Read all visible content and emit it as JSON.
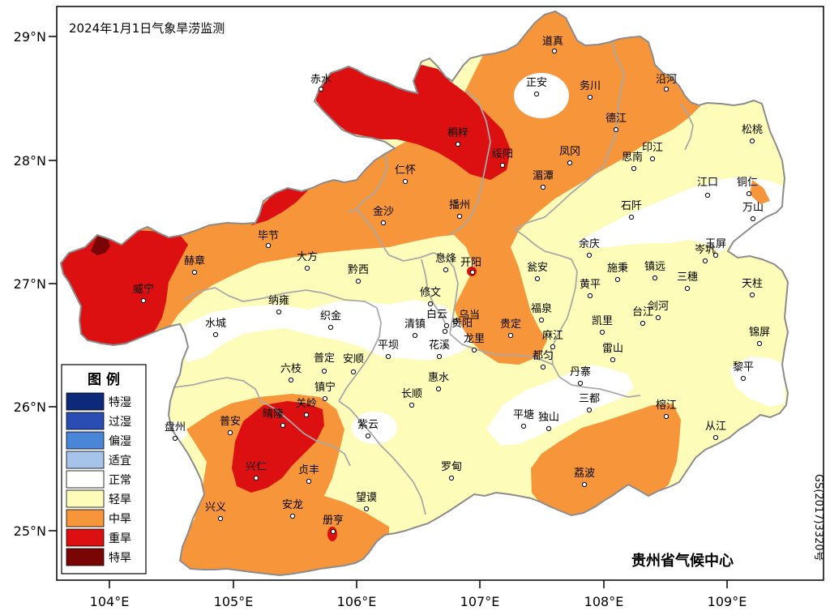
{
  "map": {
    "title": "2024年1月1日气象旱涝监测",
    "credit": "贵州省气候中心",
    "approval_number": "GS(2017)3320号",
    "lat_ticks": [
      "29°N",
      "28°N",
      "27°N",
      "26°N",
      "25°N"
    ],
    "lon_ticks": [
      "104°E",
      "105°E",
      "106°E",
      "107°E",
      "108°E",
      "109°E"
    ]
  },
  "legend": {
    "title": "图  例",
    "items": [
      {
        "label": "特湿",
        "color": "#0d2a7a"
      },
      {
        "label": "过湿",
        "color": "#2a4db3"
      },
      {
        "label": "偏湿",
        "color": "#4a86d8"
      },
      {
        "label": "适宜",
        "color": "#a6c4ea"
      },
      {
        "label": "正常",
        "color": "#ffffff"
      },
      {
        "label": "轻旱",
        "color": "#fdfcb8"
      },
      {
        "label": "中旱",
        "color": "#f7953a"
      },
      {
        "label": "重旱",
        "color": "#dc1010"
      },
      {
        "label": "特旱",
        "color": "#7a0505"
      }
    ]
  },
  "cities": [
    {
      "name": "道真"
    },
    {
      "name": "正安"
    },
    {
      "name": "务川"
    },
    {
      "name": "沿河"
    },
    {
      "name": "赤水"
    },
    {
      "name": "桐梓"
    },
    {
      "name": "德江"
    },
    {
      "name": "松桃"
    },
    {
      "name": "绥阳"
    },
    {
      "name": "凤冈"
    },
    {
      "name": "印江"
    },
    {
      "name": "思南"
    },
    {
      "name": "仁怀"
    },
    {
      "name": "湄潭"
    },
    {
      "name": "江口"
    },
    {
      "name": "铜仁"
    },
    {
      "name": "金沙"
    },
    {
      "name": "播州"
    },
    {
      "name": "石阡"
    },
    {
      "name": "万山"
    },
    {
      "name": "毕节"
    },
    {
      "name": "大方"
    },
    {
      "name": "余庆"
    },
    {
      "name": "玉屏"
    },
    {
      "name": "赫章"
    },
    {
      "name": "息烽"
    },
    {
      "name": "开阳"
    },
    {
      "name": "岑巩"
    },
    {
      "name": "黔西"
    },
    {
      "name": "瓮安"
    },
    {
      "name": "施秉"
    },
    {
      "name": "镇远"
    },
    {
      "name": "三穗"
    },
    {
      "name": "天柱"
    },
    {
      "name": "威宁"
    },
    {
      "name": "黄平"
    },
    {
      "name": "纳雍"
    },
    {
      "name": "修文"
    },
    {
      "name": "福泉"
    },
    {
      "name": "织金"
    },
    {
      "name": "白云"
    },
    {
      "name": "乌当"
    },
    {
      "name": "贵阳"
    },
    {
      "name": "凯里"
    },
    {
      "name": "台江"
    },
    {
      "name": "剑河"
    },
    {
      "name": "水城"
    },
    {
      "name": "清镇"
    },
    {
      "name": "贵定"
    },
    {
      "name": "麻江"
    },
    {
      "name": "锦屏"
    },
    {
      "name": "平坝"
    },
    {
      "name": "花溪"
    },
    {
      "name": "龙里"
    },
    {
      "name": "雷山"
    },
    {
      "name": "普定"
    },
    {
      "name": "安顺"
    },
    {
      "name": "都匀"
    },
    {
      "name": "六枝"
    },
    {
      "name": "丹寨"
    },
    {
      "name": "黎平"
    },
    {
      "name": "惠水"
    },
    {
      "name": "镇宁"
    },
    {
      "name": "长顺"
    },
    {
      "name": "关岭"
    },
    {
      "name": "三都"
    },
    {
      "name": "晴隆"
    },
    {
      "name": "平塘"
    },
    {
      "name": "独山"
    },
    {
      "name": "榕江"
    },
    {
      "name": "盘州"
    },
    {
      "name": "普安"
    },
    {
      "name": "紫云"
    },
    {
      "name": "从江"
    },
    {
      "name": "兴仁"
    },
    {
      "name": "罗甸"
    },
    {
      "name": "贞丰"
    },
    {
      "name": "荔波"
    },
    {
      "name": "兴义"
    },
    {
      "name": "安龙"
    },
    {
      "name": "望谟"
    },
    {
      "name": "册亨"
    }
  ]
}
